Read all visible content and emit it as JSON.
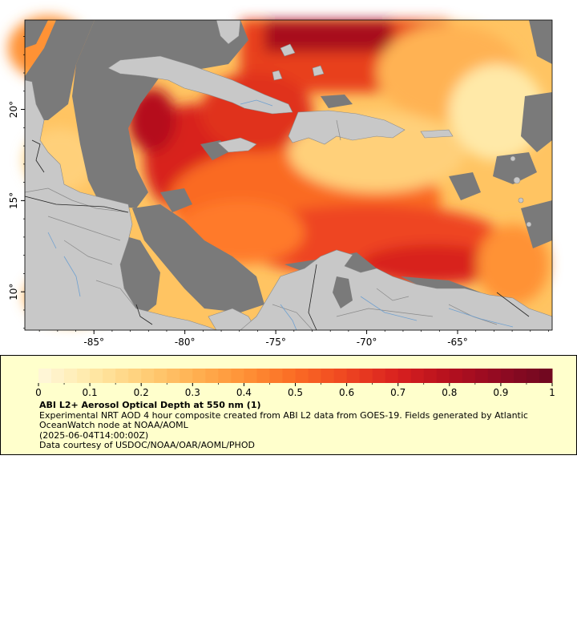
{
  "map": {
    "extent": {
      "lon_min": -88.8,
      "lon_max": -59.8,
      "lat_min": 7.9,
      "lat_max": 24.9
    },
    "lon_ticks": [
      {
        "value": -85,
        "label": "-85°"
      },
      {
        "value": -80,
        "label": "-80°"
      },
      {
        "value": -75,
        "label": "-75°"
      },
      {
        "value": -70,
        "label": "-70°"
      },
      {
        "value": -65,
        "label": "-65°"
      }
    ],
    "lat_ticks": [
      {
        "value": 20,
        "label": "20°"
      },
      {
        "value": 15,
        "label": "15°"
      },
      {
        "value": 10,
        "label": "10°"
      }
    ],
    "colors": {
      "land": "#c8c8c8",
      "nodata": "#7a7a7a",
      "rivers": "#6fa0d0",
      "borders": "#808080"
    }
  },
  "legend": {
    "scale_min": 0,
    "scale_max": 1,
    "ticks": [
      "0",
      "0.1",
      "0.2",
      "0.3",
      "0.4",
      "0.5",
      "0.6",
      "0.7",
      "0.8",
      "0.9",
      "1"
    ],
    "colors": [
      "#fff8dc",
      "#ffe9a8",
      "#ffd07a",
      "#ffb253",
      "#ff9236",
      "#fa6b24",
      "#ee4521",
      "#d8201f",
      "#b5101e",
      "#900a22",
      "#6e0820"
    ],
    "title": "ABI L2+ Aerosol Optical Depth at 550 nm (1)",
    "line1": "Experimental NRT AOD 4 hour composite created from ABI L2 data from GOES-19. Fields generated by Atlantic OceanWatch node at NOAA/AOML",
    "line2": "(2025-06-04T14:00:00Z)",
    "line3": "Data courtesy of USDOC/NOAA/OAR/AOML/PHOD"
  }
}
